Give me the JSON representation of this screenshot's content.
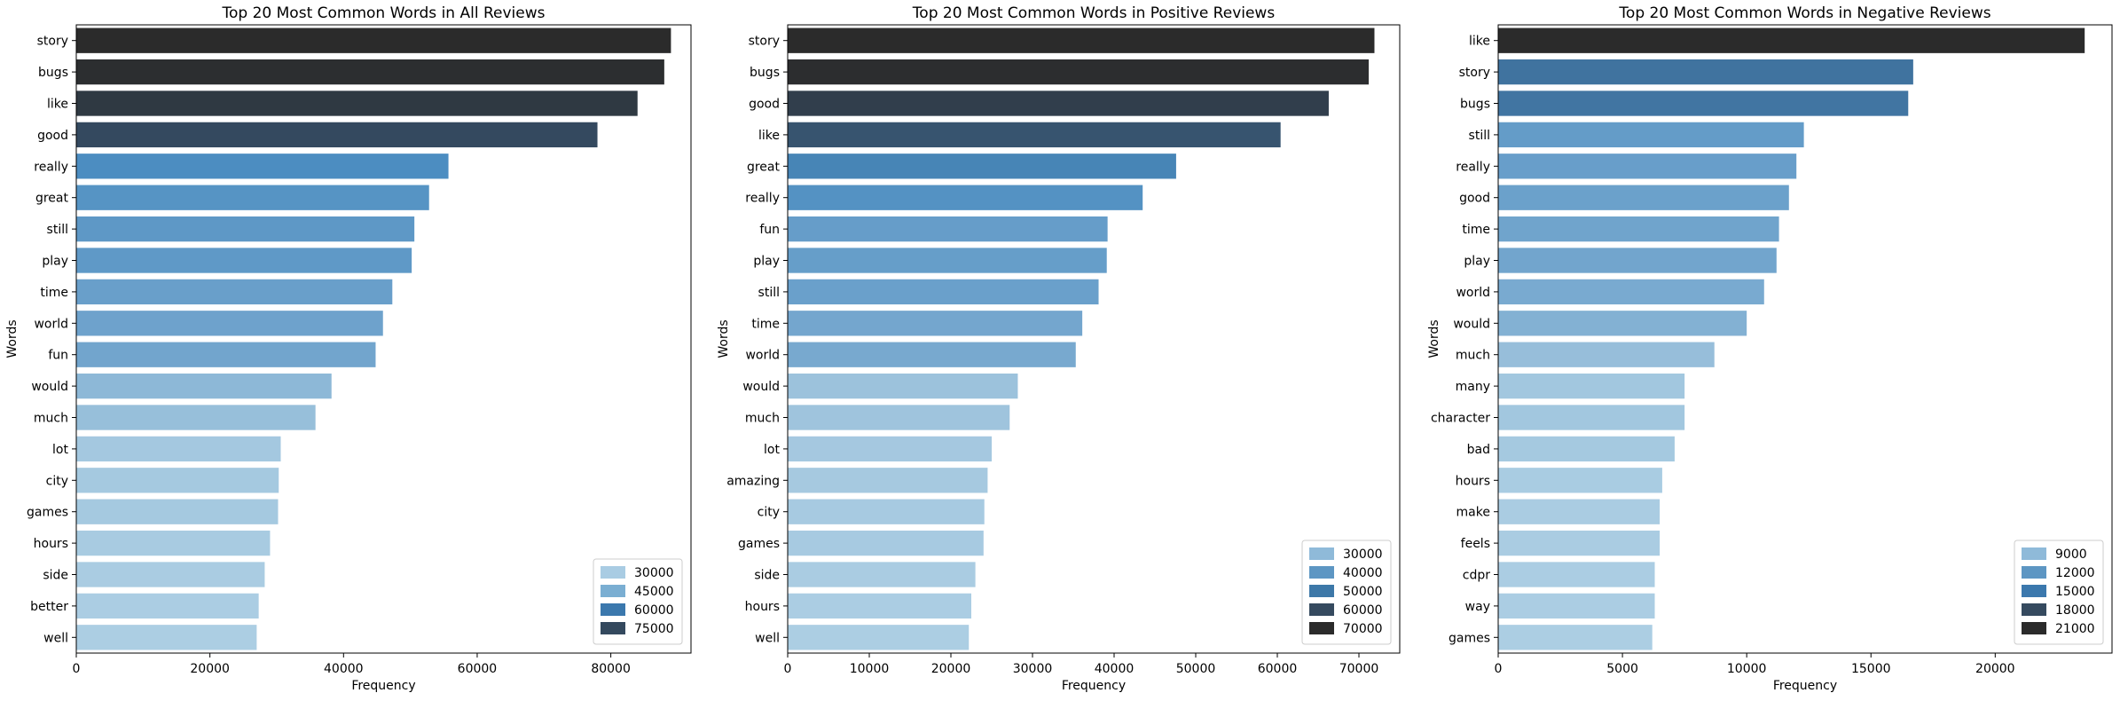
{
  "chart_data": [
    {
      "type": "bar",
      "orientation": "horizontal",
      "title": "Top 20 Most Common Words in All Reviews",
      "xlabel": "Frequency",
      "ylabel": "Words",
      "xlim": [
        0,
        92000
      ],
      "xticks": [
        0,
        20000,
        40000,
        60000,
        80000
      ],
      "categories": [
        "story",
        "bugs",
        "like",
        "good",
        "really",
        "great",
        "still",
        "play",
        "time",
        "world",
        "fun",
        "would",
        "much",
        "lot",
        "city",
        "games",
        "hours",
        "side",
        "better",
        "well"
      ],
      "values": [
        89000,
        88000,
        84000,
        78000,
        55700,
        52800,
        50600,
        50200,
        47300,
        45900,
        44800,
        38200,
        35800,
        30600,
        30300,
        30200,
        29000,
        28200,
        27300,
        27000
      ],
      "legend": {
        "entries": [
          "30000",
          "45000",
          "60000",
          "75000"
        ],
        "colors": [
          "#a9cce3",
          "#7aaed2",
          "#3b78ad",
          "#34495e"
        ],
        "placement": "lower right"
      }
    },
    {
      "type": "bar",
      "orientation": "horizontal",
      "title": "Top 20 Most Common Words in Positive Reviews",
      "xlabel": "Frequency",
      "ylabel": "Words",
      "xlim": [
        0,
        75000
      ],
      "xticks": [
        0,
        10000,
        20000,
        30000,
        40000,
        50000,
        60000,
        70000
      ],
      "categories": [
        "story",
        "bugs",
        "good",
        "like",
        "great",
        "really",
        "fun",
        "play",
        "still",
        "time",
        "world",
        "would",
        "much",
        "lot",
        "amazing",
        "city",
        "games",
        "side",
        "hours",
        "well"
      ],
      "values": [
        71900,
        71200,
        66300,
        60400,
        47600,
        43500,
        39200,
        39100,
        38100,
        36100,
        35300,
        28200,
        27200,
        25000,
        24500,
        24100,
        24000,
        23000,
        22500,
        22200
      ],
      "legend": {
        "entries": [
          "30000",
          "40000",
          "50000",
          "60000",
          "70000"
        ],
        "colors": [
          "#8fbad9",
          "#5d96c3",
          "#3d78a8",
          "#354a5f",
          "#2b2b2b"
        ],
        "placement": "lower right"
      }
    },
    {
      "type": "bar",
      "orientation": "horizontal",
      "title": "Top 20 Most Common Words in Negative Reviews",
      "xlabel": "Frequency",
      "ylabel": "Words",
      "xlim": [
        0,
        24700
      ],
      "xticks": [
        0,
        5000,
        10000,
        15000,
        20000
      ],
      "categories": [
        "like",
        "story",
        "bugs",
        "still",
        "really",
        "good",
        "time",
        "play",
        "world",
        "would",
        "much",
        "many",
        "character",
        "bad",
        "hours",
        "make",
        "feels",
        "cdpr",
        "way",
        "games"
      ],
      "values": [
        23600,
        16700,
        16500,
        12300,
        12000,
        11700,
        11300,
        11200,
        10700,
        10000,
        8700,
        7500,
        7500,
        7100,
        6600,
        6500,
        6500,
        6300,
        6300,
        6200
      ],
      "legend": {
        "entries": [
          "9000",
          "12000",
          "15000",
          "18000",
          "21000"
        ],
        "colors": [
          "#8fbad9",
          "#5d96c3",
          "#3b78ad",
          "#354a5f",
          "#2b2b2b"
        ],
        "placement": "lower right"
      }
    }
  ]
}
